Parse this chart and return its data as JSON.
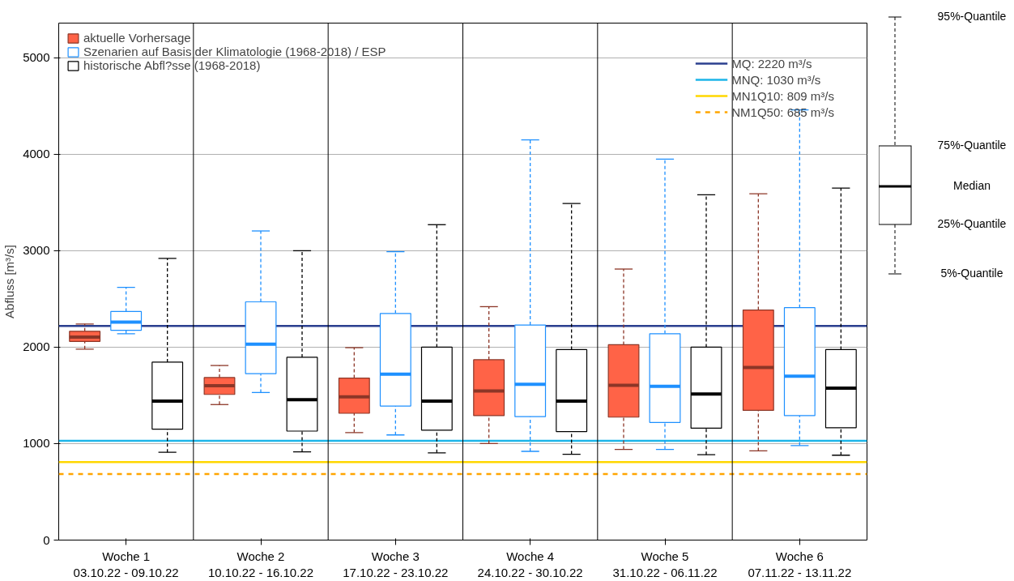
{
  "chart_data": {
    "type": "box",
    "ylabel": "Abfluss [m³/s]",
    "categories": [
      "Woche 1\n03.10.22 - 09.10.22",
      "Woche 2\n10.10.22 - 16.10.22",
      "Woche 3\n17.10.22 - 23.10.22",
      "Woche 4\n24.10.22 - 30.10.22",
      "Woche 5\n31.10.22 - 06.11.22",
      "Woche 6\n07.11.22 - 13.11.22"
    ],
    "series": [
      {
        "name": "aktuelle Vorhersage",
        "color": "#ff6347",
        "boxes": [
          {
            "low": 1980,
            "q1": 2060,
            "median": 2105,
            "q3": 2165,
            "high": 2240
          },
          {
            "low": 1405,
            "q1": 1510,
            "median": 1600,
            "q3": 1685,
            "high": 1810
          },
          {
            "low": 1115,
            "q1": 1315,
            "median": 1485,
            "q3": 1680,
            "high": 1995
          },
          {
            "low": 1000,
            "q1": 1290,
            "median": 1545,
            "q3": 1870,
            "high": 2420
          },
          {
            "low": 940,
            "q1": 1275,
            "median": 1605,
            "q3": 2025,
            "high": 2810
          },
          {
            "low": 925,
            "q1": 1345,
            "median": 1790,
            "q3": 2385,
            "high": 3590
          }
        ]
      },
      {
        "name": "Szenarien auf Basis der Klimatologie (1968-2018) / ESP",
        "color": "#1e90ff",
        "boxes": [
          {
            "low": 2140,
            "q1": 2175,
            "median": 2260,
            "q3": 2370,
            "high": 2620
          },
          {
            "low": 1530,
            "q1": 1725,
            "median": 2030,
            "q3": 2470,
            "high": 3205
          },
          {
            "low": 1090,
            "q1": 1390,
            "median": 1720,
            "q3": 2350,
            "high": 2990
          },
          {
            "low": 920,
            "q1": 1280,
            "median": 1615,
            "q3": 2230,
            "high": 4150
          },
          {
            "low": 940,
            "q1": 1220,
            "median": 1595,
            "q3": 2140,
            "high": 3950
          },
          {
            "low": 980,
            "q1": 1290,
            "median": 1700,
            "q3": 2410,
            "high": 4460
          }
        ]
      },
      {
        "name": "historische Abfl?sse (1968-2018)",
        "color": "#000000",
        "boxes": [
          {
            "low": 910,
            "q1": 1150,
            "median": 1440,
            "q3": 1845,
            "high": 2920
          },
          {
            "low": 915,
            "q1": 1130,
            "median": 1455,
            "q3": 1895,
            "high": 3000
          },
          {
            "low": 905,
            "q1": 1140,
            "median": 1440,
            "q3": 2000,
            "high": 3270
          },
          {
            "low": 890,
            "q1": 1125,
            "median": 1440,
            "q3": 1975,
            "high": 3490
          },
          {
            "low": 885,
            "q1": 1160,
            "median": 1515,
            "q3": 2000,
            "high": 3580
          },
          {
            "low": 880,
            "q1": 1165,
            "median": 1575,
            "q3": 1975,
            "high": 3650
          }
        ]
      }
    ],
    "ref_lines": [
      {
        "axis": "y",
        "value": 2220,
        "label": "MQ: 2220 m³/s",
        "color": "#2b3f8f",
        "line_style": "solid"
      },
      {
        "axis": "y",
        "value": 1030,
        "label": "MNQ: 1030 m³/s",
        "color": "#1cb5e8",
        "line_style": "solid"
      },
      {
        "axis": "y",
        "value": 809,
        "label": "MN1Q10: 809 m³/s",
        "color": "#ffd700",
        "line_style": "solid"
      },
      {
        "axis": "y",
        "value": 685,
        "label": "NM1Q50: 685 m³/s",
        "color": "#ffa500",
        "line_style": "dashed"
      }
    ],
    "annotations": [
      "95%-Quantile",
      "75%-Quantile",
      "Median",
      "25%-Quantile",
      "5%-Quantile"
    ],
    "ylim": [
      0,
      5360
    ],
    "yticks": [
      0,
      1000,
      2000,
      3000,
      4000,
      5000
    ],
    "grid": "y",
    "legend": "top left"
  }
}
